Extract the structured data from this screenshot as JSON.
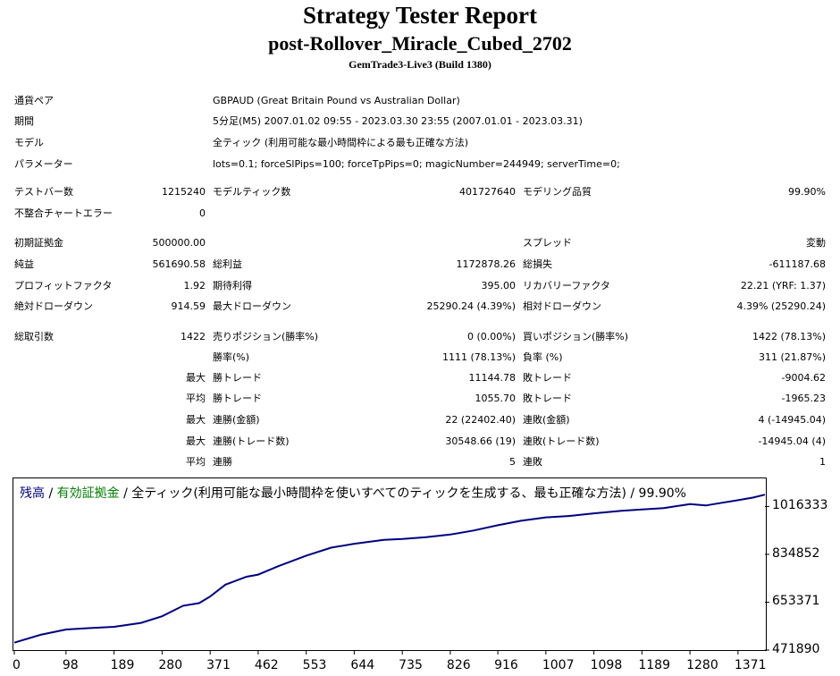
{
  "report": {
    "title": "Strategy Tester Report",
    "ea_name": "post-Rollover_Miracle_Cubed_2702",
    "server": "GemTrade3-Live3 (Build 1380)"
  },
  "info": [
    {
      "label": "通貨ペア",
      "value": "GBPAUD (Great Britain Pound vs Australian Dollar)"
    },
    {
      "label": "期間",
      "value": "5分足(M5) 2007.01.02 09:55 - 2023.03.30 23:55 (2007.01.01 - 2023.03.31)"
    },
    {
      "label": "モデル",
      "value": "全ティック (利用可能な最小時間枠による最も正確な方法)"
    },
    {
      "label": "パラメーター",
      "value": "lots=0.1; forceSlPips=100; forceTpPips=0; magicNumber=244949; serverTime=0;"
    }
  ],
  "stats_rows": [
    [
      "テストバー数",
      "1215240",
      "モデルティック数",
      "401727640",
      "モデリング品質",
      "99.90%"
    ],
    [
      "不整合チャートエラー",
      "0",
      "",
      "",
      "",
      ""
    ],
    [
      "初期証拠金",
      "500000.00",
      "",
      "",
      "スプレッド",
      "変動"
    ],
    [
      "純益",
      "561690.58",
      "総利益",
      "1172878.26",
      "総損失",
      "-611187.68"
    ],
    [
      "プロフィットファクタ",
      "1.92",
      "期待利得",
      "395.00",
      "リカバリーファクタ",
      "22.21 (YRF: 1.37)"
    ],
    [
      "絶対ドローダウン",
      "914.59",
      "最大ドローダウン",
      "25290.24 (4.39%)",
      "相対ドローダウン",
      "4.39% (25290.24)"
    ]
  ],
  "trade_stats": {
    "total_label": "総取引数",
    "total_value": "1422",
    "rows": [
      {
        "prefix": "",
        "l1": "売りポジション(勝率%)",
        "v1": "0 (0.00%)",
        "l2": "買いポジション(勝率%)",
        "v2": "1422 (78.13%)"
      },
      {
        "prefix": "",
        "l1": "勝率(%)",
        "v1": "1111 (78.13%)",
        "l2": "負率 (%)",
        "v2": "311 (21.87%)"
      },
      {
        "prefix": "最大",
        "l1": "勝トレード",
        "v1": "11144.78",
        "l2": "敗トレード",
        "v2": "-9004.62"
      },
      {
        "prefix": "平均",
        "l1": "勝トレード",
        "v1": "1055.70",
        "l2": "敗トレード",
        "v2": "-1965.23"
      },
      {
        "prefix": "最大",
        "l1": "連勝(金額)",
        "v1": "22 (22402.40)",
        "l2": "連敗(金額)",
        "v2": "4 (-14945.04)"
      },
      {
        "prefix": "最大",
        "l1": "連勝(トレード数)",
        "v1": "30548.66 (19)",
        "l2": "連敗(トレード数)",
        "v2": "-14945.04 (4)"
      },
      {
        "prefix": "平均",
        "l1": "連勝",
        "v1": "5",
        "l2": "連敗",
        "v2": "1"
      }
    ]
  },
  "chart_legend": {
    "balance": "残高",
    "sep1": " / ",
    "equity": "有効証拠金",
    "rest": " / 全ティック(利用可能な最小時間枠を使いすべてのティックを生成する、最も正確な方法) / 99.90%",
    "balance_color": "#000080",
    "equity_color": "#008000"
  },
  "chart_data": {
    "type": "line",
    "title": "",
    "xlabel": "",
    "ylabel": "",
    "x_ticks": [
      "0",
      "98",
      "189",
      "280",
      "371",
      "462",
      "553",
      "644",
      "735",
      "826",
      "916",
      "1007",
      "1098",
      "1189",
      "1280",
      "1371"
    ],
    "y_ticks": [
      "1016333",
      "834852",
      "653371",
      "471890"
    ],
    "xlim": [
      0,
      1422
    ],
    "ylim": [
      471890,
      1061691
    ],
    "series": [
      {
        "color": "#000080",
        "x": [
          0,
          50,
          98,
          140,
          189,
          240,
          280,
          320,
          350,
          371,
          400,
          440,
          462,
          500,
          553,
          600,
          644,
          700,
          735,
          780,
          826,
          870,
          916,
          960,
          1007,
          1050,
          1098,
          1150,
          1189,
          1230,
          1280,
          1310,
          1340,
          1371,
          1400,
          1422
        ],
        "y": [
          500000,
          530000,
          550000,
          555000,
          560000,
          575000,
          600000,
          640000,
          650000,
          675000,
          720000,
          750000,
          758000,
          790000,
          830000,
          860000,
          875000,
          890000,
          893000,
          900000,
          910000,
          925000,
          945000,
          962000,
          975000,
          980000,
          990000,
          1000000,
          1005000,
          1010000,
          1025000,
          1020000,
          1030000,
          1040000,
          1050000,
          1061000
        ]
      }
    ]
  }
}
